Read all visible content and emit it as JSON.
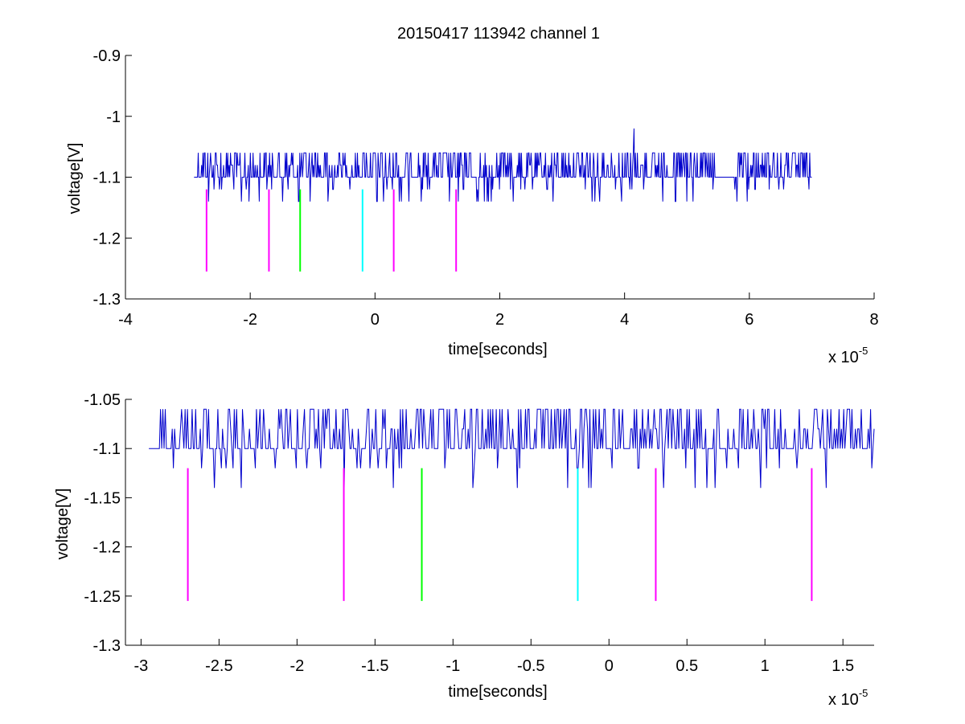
{
  "chart_data": [
    {
      "type": "line",
      "title": "20150417 113942 channel 1",
      "xlabel": "time[seconds]",
      "ylabel": "voltage[V]",
      "x_exponent_label": "x 10",
      "x_exponent_power": "-5",
      "xlim": [
        -4,
        8
      ],
      "ylim": [
        -1.3,
        -0.9
      ],
      "xticks": [
        -4,
        -2,
        0,
        2,
        4,
        6,
        8
      ],
      "xtick_labels": [
        "-4",
        "-2",
        "0",
        "2",
        "4",
        "6",
        "8"
      ],
      "yticks": [
        -1.3,
        -1.2,
        -1.1,
        -1.0,
        -0.9
      ],
      "ytick_labels": [
        "-1.3",
        "-1.2",
        "-1.1",
        "-1",
        "-0.9"
      ],
      "signal": {
        "color": "#0000cc",
        "x_range": [
          -2.9,
          7.0
        ],
        "baseline": -1.1,
        "levels": [
          -1.14,
          -1.12,
          -1.1,
          -1.08,
          -1.06
        ],
        "spike": {
          "x": 4.15,
          "y": -1.02
        }
      },
      "markers": [
        {
          "x": -2.7,
          "y_top": -1.12,
          "y_bottom": -1.255,
          "color": "#ff00ff"
        },
        {
          "x": -1.7,
          "y_top": -1.12,
          "y_bottom": -1.255,
          "color": "#ff00ff"
        },
        {
          "x": -1.2,
          "y_top": -1.12,
          "y_bottom": -1.255,
          "color": "#00ff00"
        },
        {
          "x": -0.2,
          "y_top": -1.12,
          "y_bottom": -1.255,
          "color": "#00ffff"
        },
        {
          "x": 0.3,
          "y_top": -1.12,
          "y_bottom": -1.255,
          "color": "#ff00ff"
        },
        {
          "x": 1.3,
          "y_top": -1.12,
          "y_bottom": -1.255,
          "color": "#ff00ff"
        }
      ]
    },
    {
      "type": "line",
      "title": "",
      "xlabel": "time[seconds]",
      "ylabel": "voltage[V]",
      "x_exponent_label": "x 10",
      "x_exponent_power": "-5",
      "xlim": [
        -3.1,
        1.7
      ],
      "ylim": [
        -1.3,
        -1.05
      ],
      "xticks": [
        -3,
        -2.5,
        -2,
        -1.5,
        -1,
        -0.5,
        0,
        0.5,
        1,
        1.5
      ],
      "xtick_labels": [
        "-3",
        "-2.5",
        "-2",
        "-1.5",
        "-1",
        "-0.5",
        "0",
        "0.5",
        "1",
        "1.5"
      ],
      "yticks": [
        -1.3,
        -1.25,
        -1.2,
        -1.15,
        -1.1,
        -1.05
      ],
      "ytick_labels": [
        "-1.3",
        "-1.25",
        "-1.2",
        "-1.15",
        "-1.1",
        "-1.05"
      ],
      "signal": {
        "color": "#0000cc",
        "x_range": [
          -2.95,
          1.7
        ],
        "baseline": -1.1,
        "levels": [
          -1.14,
          -1.12,
          -1.1,
          -1.08,
          -1.06
        ]
      },
      "markers": [
        {
          "x": -2.7,
          "y_top": -1.12,
          "y_bottom": -1.255,
          "color": "#ff00ff"
        },
        {
          "x": -1.7,
          "y_top": -1.12,
          "y_bottom": -1.255,
          "color": "#ff00ff"
        },
        {
          "x": -1.2,
          "y_top": -1.12,
          "y_bottom": -1.255,
          "color": "#00ff00"
        },
        {
          "x": -0.2,
          "y_top": -1.12,
          "y_bottom": -1.255,
          "color": "#00ffff"
        },
        {
          "x": 0.3,
          "y_top": -1.12,
          "y_bottom": -1.255,
          "color": "#ff00ff"
        },
        {
          "x": 1.3,
          "y_top": -1.12,
          "y_bottom": -1.255,
          "color": "#ff00ff"
        }
      ]
    }
  ]
}
